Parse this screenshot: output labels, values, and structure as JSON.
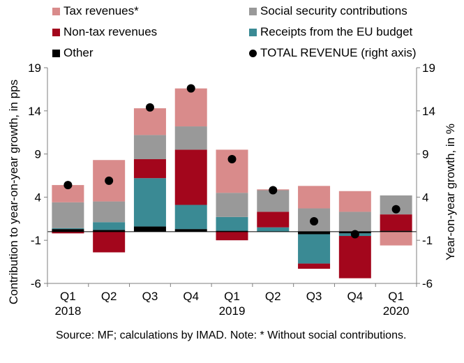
{
  "legend": [
    {
      "label": "Tax revenues*",
      "color": "#d98b8b",
      "kind": "swatch"
    },
    {
      "label": "Social security contributions",
      "color": "#999999",
      "kind": "swatch"
    },
    {
      "label": "Non-tax revenues",
      "color": "#a3061c",
      "kind": "swatch"
    },
    {
      "label": "Receipts from the EU budget",
      "color": "#3a8a94",
      "kind": "swatch"
    },
    {
      "label": "Other",
      "color": "#000000",
      "kind": "swatch"
    },
    {
      "label": "TOTAL REVENUE (right axis)",
      "color": "#000000",
      "kind": "dot"
    }
  ],
  "source_note": "Source: MF; calculations by IMAD. Note: * Without social contributions.",
  "chart_data": {
    "type": "bar",
    "stacked": true,
    "categories": [
      "Q1 2018",
      "Q2",
      "Q3",
      "Q4",
      "Q1 2019",
      "Q2",
      "Q3",
      "Q4",
      "Q1 2020"
    ],
    "category_lines": [
      [
        "Q1",
        "2018"
      ],
      [
        "Q2"
      ],
      [
        "Q3"
      ],
      [
        "Q4"
      ],
      [
        "Q1",
        "2019"
      ],
      [
        "Q2"
      ],
      [
        "Q3"
      ],
      [
        "Q4"
      ],
      [
        "Q1",
        "2020"
      ]
    ],
    "ylabel": "Contribution to year-on-year growth, in pps",
    "y2label": "Year-on-year growth, in %",
    "ylim": [
      -6,
      19
    ],
    "y2lim": [
      -6,
      19
    ],
    "yticks": [
      -6,
      -1,
      4,
      9,
      14,
      19
    ],
    "grid": false,
    "series": [
      {
        "name": "Other",
        "color": "#000000",
        "values": [
          0.3,
          0.2,
          0.6,
          0.3,
          0.1,
          0.0,
          -0.3,
          -0.2,
          0.1
        ]
      },
      {
        "name": "Receipts from the EU budget",
        "color": "#3a8a94",
        "values": [
          0.1,
          0.9,
          5.6,
          2.8,
          1.6,
          0.5,
          -3.4,
          -0.3,
          0.0
        ]
      },
      {
        "name": "Non-tax revenues",
        "color": "#a3061c",
        "values": [
          -0.2,
          -2.4,
          2.2,
          6.4,
          -1.0,
          1.8,
          -0.6,
          -4.9,
          1.9
        ]
      },
      {
        "name": "Social security contributions",
        "color": "#999999",
        "values": [
          3.0,
          2.4,
          2.8,
          2.7,
          2.8,
          2.5,
          2.7,
          2.3,
          2.2
        ]
      },
      {
        "name": "Tax revenues*",
        "color": "#d98b8b",
        "values": [
          2.0,
          4.8,
          3.1,
          4.4,
          5.0,
          0.1,
          2.6,
          2.4,
          -1.6
        ]
      }
    ],
    "total": {
      "name": "TOTAL REVENUE (right axis)",
      "values": [
        5.4,
        5.9,
        14.4,
        16.6,
        8.4,
        4.8,
        1.2,
        -0.3,
        2.6
      ]
    }
  }
}
